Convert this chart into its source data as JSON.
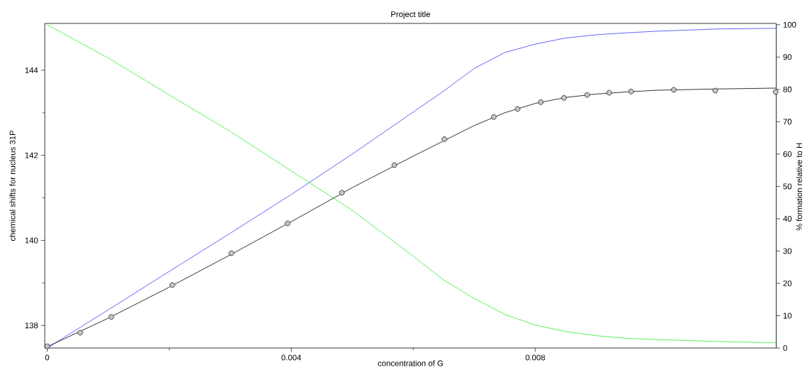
{
  "chart_data": {
    "type": "line",
    "title": "Project title",
    "xlabel": "concentration of G",
    "ylabel": "chemical shifts for nucleus 31P",
    "y2label": "% formation relative to H",
    "xlim": [
      -4e-05,
      0.01195
    ],
    "xticks": [
      0,
      0.004,
      0.008
    ],
    "ylim": [
      137.47,
      145.1
    ],
    "yticks": [
      138,
      140,
      142,
      144
    ],
    "y2lim": [
      -0.3,
      100.1
    ],
    "y2ticks": [
      0,
      10,
      20,
      30,
      40,
      50,
      60,
      70,
      80,
      90,
      100
    ],
    "grid": false,
    "series": [
      {
        "axis": "y2",
        "color": "#3c3cff",
        "x": [
          0,
          0.001,
          0.002,
          0.003,
          0.004,
          0.005,
          0.006,
          0.0065,
          0.007,
          0.0075,
          0.008,
          0.0085,
          0.009,
          0.0095,
          0.01,
          0.011,
          0.01194
        ],
        "values": [
          0,
          11.8,
          23.7,
          35.5,
          47.5,
          60,
          73,
          79.5,
          86.5,
          91.4,
          94,
          95.9,
          96.9,
          97.5,
          98,
          98.7,
          98.9
        ]
      },
      {
        "axis": "y2",
        "color": "#33ee33",
        "x": [
          0,
          0.001,
          0.002,
          0.003,
          0.004,
          0.005,
          0.006,
          0.0065,
          0.007,
          0.0075,
          0.008,
          0.0085,
          0.009,
          0.0095,
          0.01,
          0.011,
          0.01194
        ],
        "values": [
          100,
          89.7,
          78.3,
          67,
          54.8,
          42.6,
          28.4,
          21,
          15.3,
          10.4,
          7.1,
          5.1,
          3.8,
          3,
          2.6,
          2,
          1.6
        ]
      },
      {
        "color": "#000000",
        "x": [
          0,
          0.001,
          0.002,
          0.003,
          0.004,
          0.005,
          0.006,
          0.007,
          0.0075,
          0.008,
          0.0085,
          0.009,
          0.0095,
          0.01,
          0.011,
          0.01194
        ],
        "values": [
          137.5,
          138.17,
          138.9,
          139.66,
          140.44,
          141.24,
          141.98,
          142.7,
          143.0,
          143.22,
          143.36,
          143.44,
          143.49,
          143.53,
          143.56,
          143.58
        ]
      },
      {
        "type": "scatter",
        "marker": "circle",
        "color": "#000000",
        "x": [
          0,
          0.00054,
          0.00105,
          0.00205,
          0.00302,
          0.00394,
          0.00483,
          0.00569,
          0.00651,
          0.00732,
          0.00771,
          0.00809,
          0.00847,
          0.00885,
          0.00921,
          0.00957,
          0.01027,
          0.01095,
          0.01194
        ],
        "values": [
          137.51,
          137.83,
          138.2,
          138.95,
          139.7,
          140.4,
          141.12,
          141.77,
          142.38,
          142.9,
          143.09,
          143.25,
          143.35,
          143.42,
          143.47,
          143.5,
          143.54,
          143.52,
          143.49
        ]
      }
    ]
  }
}
